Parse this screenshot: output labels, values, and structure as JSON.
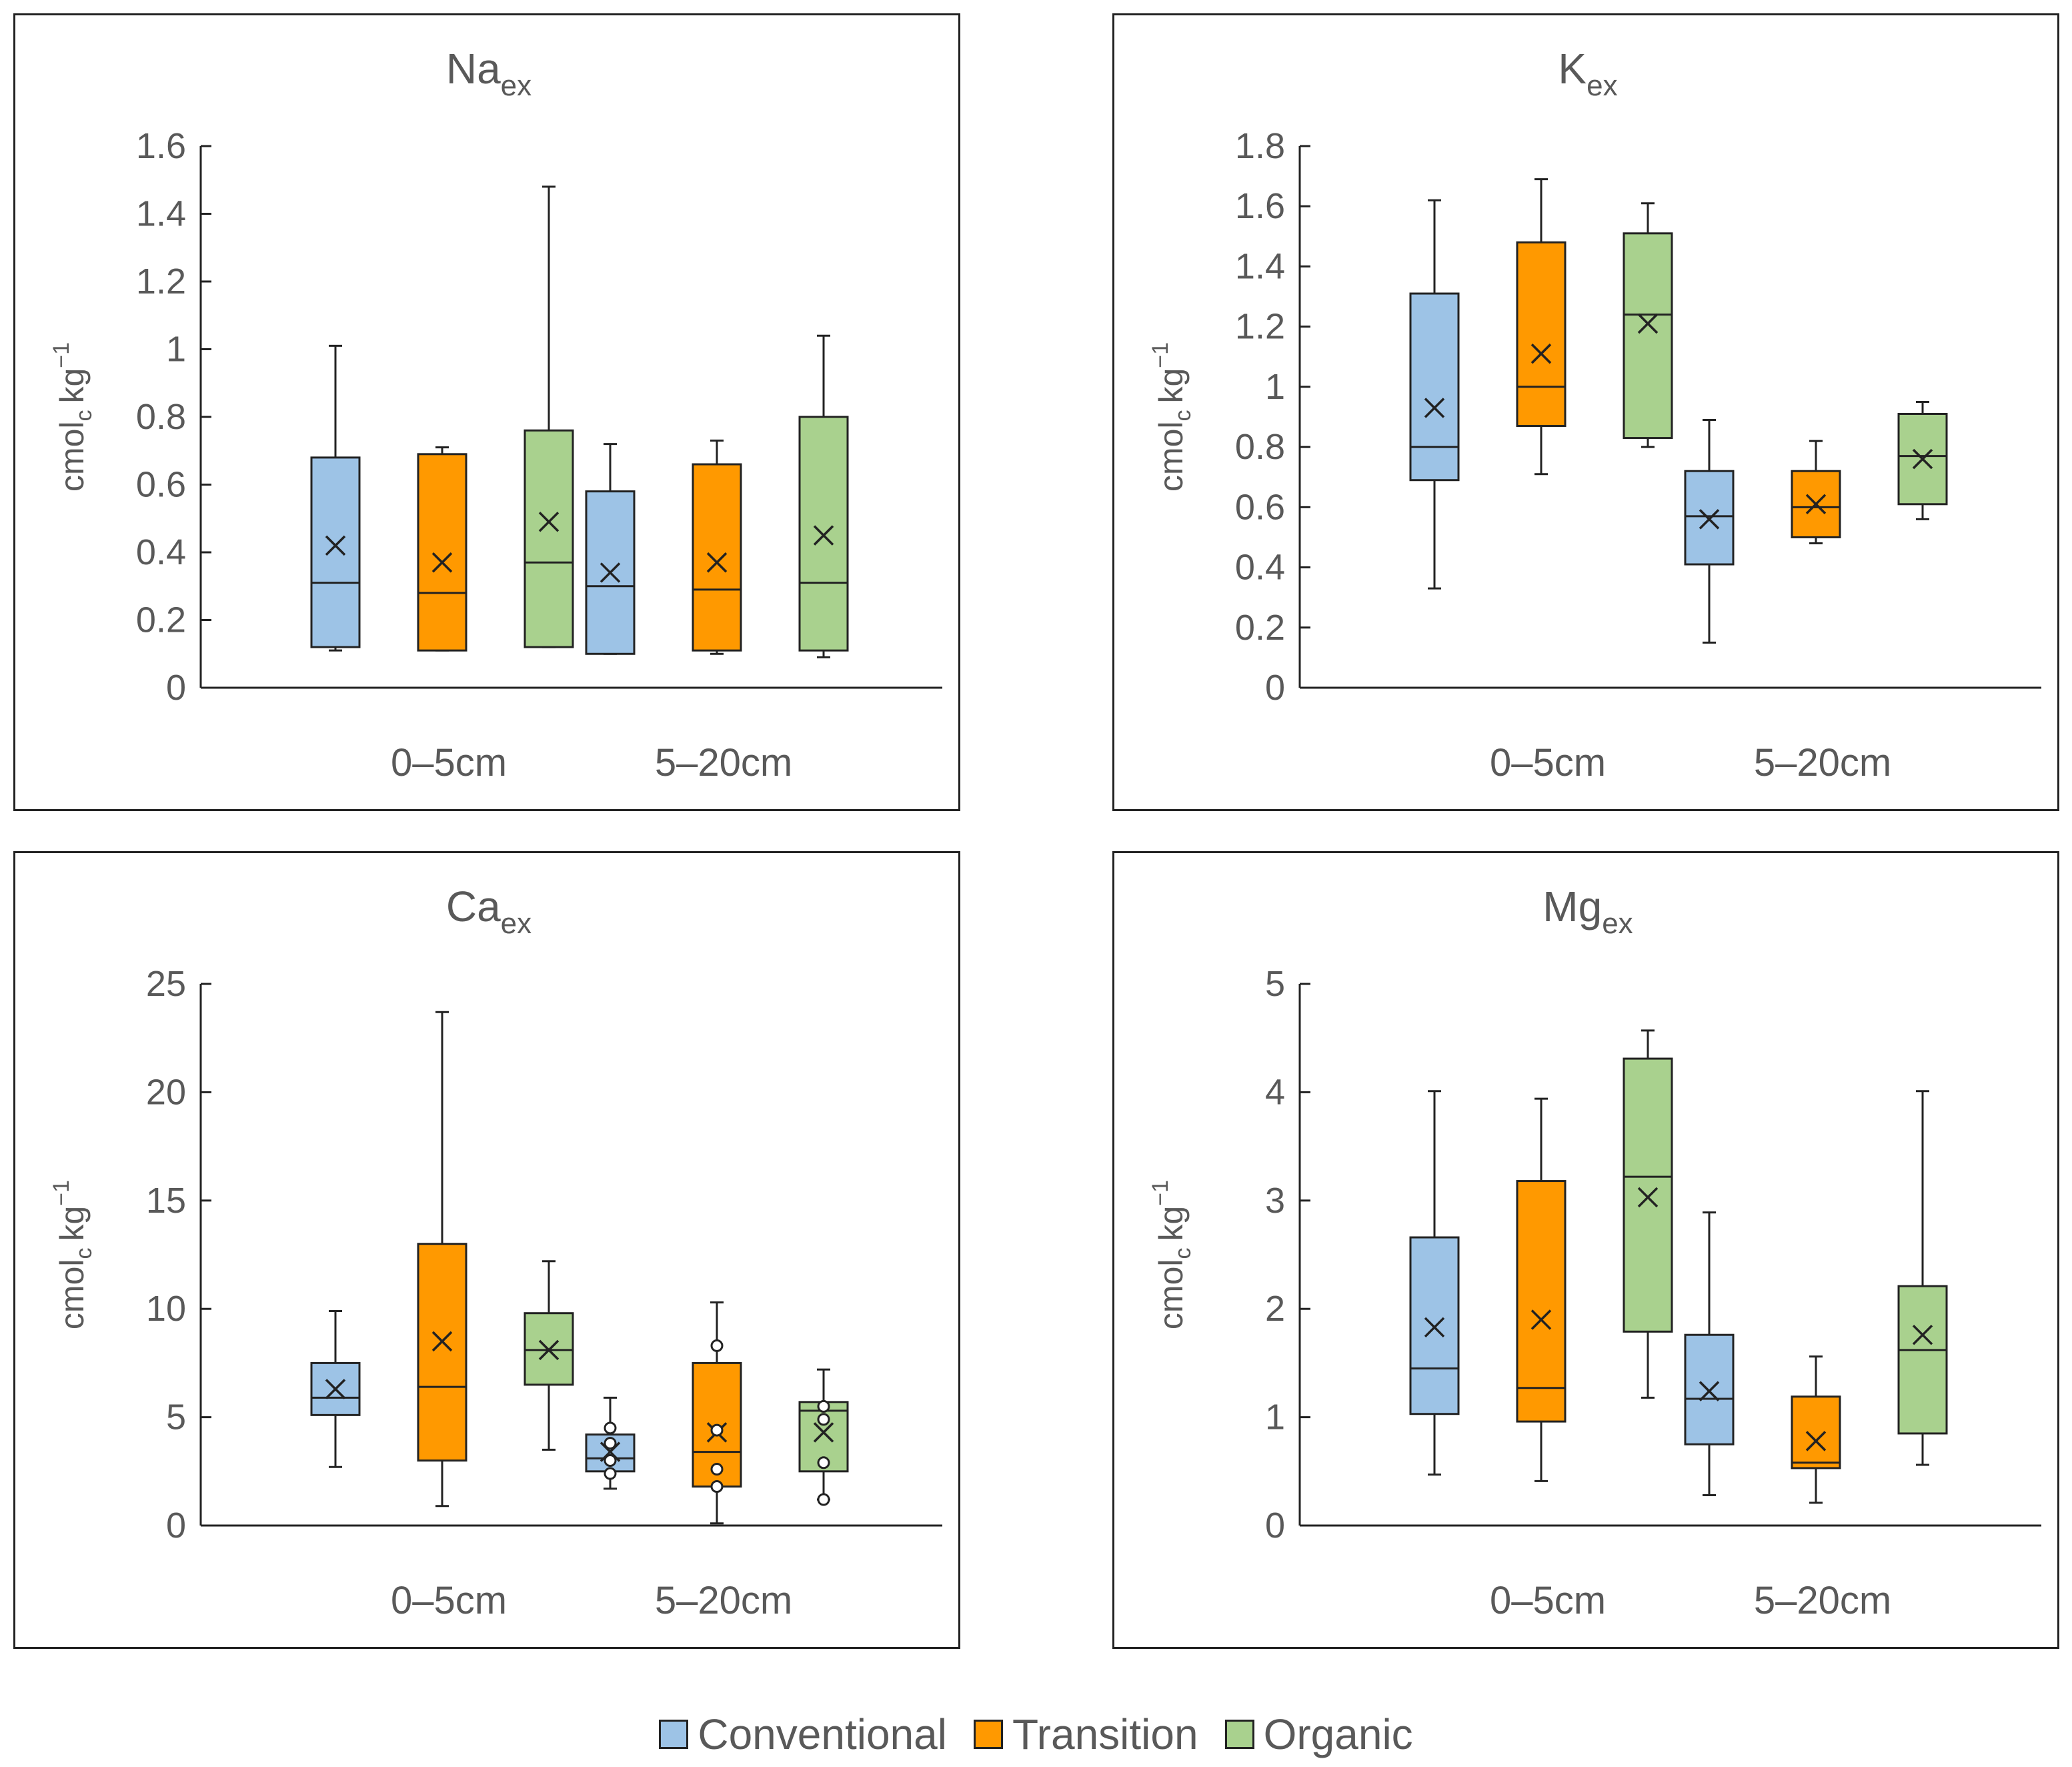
{
  "legend": [
    {
      "name": "Conventional",
      "color": "#9DC3E6"
    },
    {
      "name": "Transition",
      "color": "#FF9900"
    },
    {
      "name": "Organic",
      "color": "#A9D18E"
    }
  ],
  "chart_data": [
    {
      "type": "box",
      "title": "Na",
      "title_sub": "ex",
      "ylabel": "cmol",
      "ylabel_sub": "c",
      "ylabel_unit": "kg",
      "ylabel_sup": "−1",
      "ylim": [
        0,
        1.6
      ],
      "yticks": [
        "0",
        "0.2",
        "0.4",
        "0.6",
        "0.8",
        "1",
        "1.2",
        "1.4",
        "1.6"
      ],
      "categories": [
        "0–5cm",
        "5–20cm"
      ],
      "series": [
        {
          "name": "Conventional",
          "boxes": [
            {
              "min": 0.11,
              "q1": 0.12,
              "median": 0.31,
              "q3": 0.68,
              "max": 1.01,
              "mean": 0.42,
              "outliers": []
            },
            {
              "min": 0.1,
              "q1": 0.1,
              "median": 0.3,
              "q3": 0.58,
              "max": 0.72,
              "mean": 0.34,
              "outliers": []
            }
          ]
        },
        {
          "name": "Transition",
          "boxes": [
            {
              "min": 0.11,
              "q1": 0.11,
              "median": 0.28,
              "q3": 0.69,
              "max": 0.71,
              "mean": 0.37,
              "outliers": []
            },
            {
              "min": 0.1,
              "q1": 0.11,
              "median": 0.29,
              "q3": 0.66,
              "max": 0.73,
              "mean": 0.37,
              "outliers": []
            }
          ]
        },
        {
          "name": "Organic",
          "boxes": [
            {
              "min": 0.12,
              "q1": 0.12,
              "median": 0.37,
              "q3": 0.76,
              "max": 1.48,
              "mean": 0.49,
              "outliers": []
            },
            {
              "min": 0.09,
              "q1": 0.11,
              "median": 0.31,
              "q3": 0.8,
              "max": 1.04,
              "mean": 0.45,
              "outliers": []
            }
          ]
        }
      ]
    },
    {
      "type": "box",
      "title": "K",
      "title_sub": "ex",
      "ylabel": "cmol",
      "ylabel_sub": "c",
      "ylabel_unit": "kg",
      "ylabel_sup": "−1",
      "ylim": [
        0,
        1.8
      ],
      "yticks": [
        "0",
        "0.2",
        "0.4",
        "0.6",
        "0.8",
        "1",
        "1.2",
        "1.4",
        "1.6",
        "1.8"
      ],
      "categories": [
        "0–5cm",
        "5–20cm"
      ],
      "series": [
        {
          "name": "Conventional",
          "boxes": [
            {
              "min": 0.33,
              "q1": 0.69,
              "median": 0.8,
              "q3": 1.31,
              "max": 1.62,
              "mean": 0.93,
              "outliers": []
            },
            {
              "min": 0.15,
              "q1": 0.41,
              "median": 0.57,
              "q3": 0.72,
              "max": 0.89,
              "mean": 0.56,
              "outliers": []
            }
          ]
        },
        {
          "name": "Transition",
          "boxes": [
            {
              "min": 0.71,
              "q1": 0.87,
              "median": 1.0,
              "q3": 1.48,
              "max": 1.69,
              "mean": 1.11,
              "outliers": []
            },
            {
              "min": 0.48,
              "q1": 0.5,
              "median": 0.6,
              "q3": 0.72,
              "max": 0.82,
              "mean": 0.61,
              "outliers": []
            }
          ]
        },
        {
          "name": "Organic",
          "boxes": [
            {
              "min": 0.8,
              "q1": 0.83,
              "median": 1.24,
              "q3": 1.51,
              "max": 1.61,
              "mean": 1.21,
              "outliers": []
            },
            {
              "min": 0.56,
              "q1": 0.61,
              "median": 0.77,
              "q3": 0.91,
              "max": 0.95,
              "mean": 0.76,
              "outliers": []
            }
          ]
        }
      ]
    },
    {
      "type": "box",
      "title": "Ca",
      "title_sub": "ex",
      "ylabel": "cmol",
      "ylabel_sub": "c",
      "ylabel_unit": "kg",
      "ylabel_sup": "−1",
      "ylim": [
        0,
        25
      ],
      "yticks": [
        "0",
        "5",
        "10",
        "15",
        "20",
        "25"
      ],
      "categories": [
        "0–5cm",
        "5–20cm"
      ],
      "series": [
        {
          "name": "Conventional",
          "boxes": [
            {
              "min": 2.7,
              "q1": 5.1,
              "median": 5.9,
              "q3": 7.5,
              "max": 9.9,
              "mean": 6.3,
              "outliers": []
            },
            {
              "min": 1.7,
              "q1": 2.5,
              "median": 3.1,
              "q3": 4.2,
              "max": 5.9,
              "mean": 3.4,
              "outliers": [
                2.4,
                3.0,
                3.8,
                4.5
              ]
            }
          ]
        },
        {
          "name": "Transition",
          "boxes": [
            {
              "min": 0.9,
              "q1": 3.0,
              "median": 6.4,
              "q3": 13.0,
              "max": 23.7,
              "mean": 8.5,
              "outliers": []
            },
            {
              "min": 0.1,
              "q1": 1.8,
              "median": 3.4,
              "q3": 7.5,
              "max": 10.3,
              "mean": 4.3,
              "outliers": [
                1.8,
                2.6,
                4.4,
                8.3
              ]
            }
          ]
        },
        {
          "name": "Organic",
          "boxes": [
            {
              "min": 3.5,
              "q1": 6.5,
              "median": 8.1,
              "q3": 9.8,
              "max": 12.2,
              "mean": 8.1,
              "outliers": []
            },
            {
              "min": 1.2,
              "q1": 2.5,
              "median": 5.3,
              "q3": 5.7,
              "max": 7.2,
              "mean": 4.3,
              "outliers": [
                1.2,
                2.9,
                4.9,
                5.5
              ]
            }
          ]
        }
      ]
    },
    {
      "type": "box",
      "title": "Mg",
      "title_sub": "ex",
      "ylabel": "cmol",
      "ylabel_sub": "c",
      "ylabel_unit": "kg",
      "ylabel_sup": "−1",
      "ylim": [
        0,
        5
      ],
      "yticks": [
        "0",
        "1",
        "2",
        "3",
        "4",
        "5"
      ],
      "categories": [
        "0–5cm",
        "5–20cm"
      ],
      "series": [
        {
          "name": "Conventional",
          "boxes": [
            {
              "min": 0.47,
              "q1": 1.03,
              "median": 1.45,
              "q3": 2.66,
              "max": 4.01,
              "mean": 1.83,
              "outliers": []
            },
            {
              "min": 0.28,
              "q1": 0.75,
              "median": 1.17,
              "q3": 1.76,
              "max": 2.89,
              "mean": 1.24,
              "outliers": []
            }
          ]
        },
        {
          "name": "Transition",
          "boxes": [
            {
              "min": 0.41,
              "q1": 0.96,
              "median": 1.27,
              "q3": 3.18,
              "max": 3.94,
              "mean": 1.9,
              "outliers": []
            },
            {
              "min": 0.21,
              "q1": 0.53,
              "median": 0.58,
              "q3": 1.19,
              "max": 1.56,
              "mean": 0.78,
              "outliers": []
            }
          ]
        },
        {
          "name": "Organic",
          "boxes": [
            {
              "min": 1.18,
              "q1": 1.79,
              "median": 3.22,
              "q3": 4.31,
              "max": 4.57,
              "mean": 3.03,
              "outliers": []
            },
            {
              "min": 0.56,
              "q1": 0.85,
              "median": 1.62,
              "q3": 2.21,
              "max": 4.01,
              "mean": 1.76,
              "outliers": []
            }
          ]
        }
      ]
    }
  ]
}
